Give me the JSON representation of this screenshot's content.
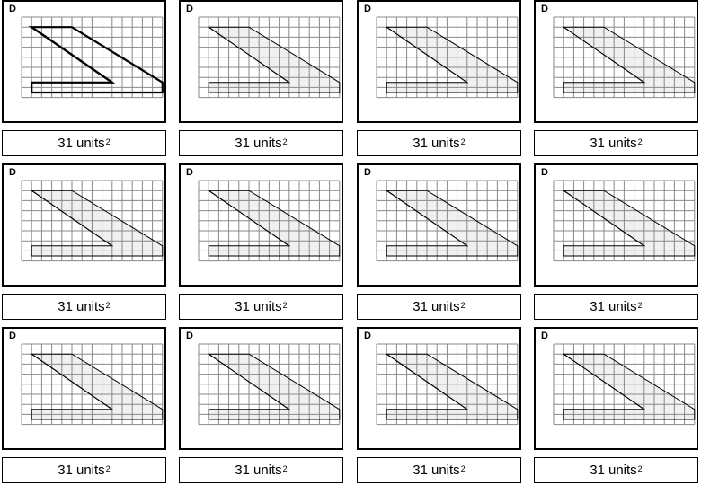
{
  "cards": [
    {
      "letter": "D",
      "value": "31",
      "unit": "units",
      "exponent": "2",
      "highlighted": true
    },
    {
      "letter": "D",
      "value": "31",
      "unit": "units",
      "exponent": "2",
      "highlighted": false
    },
    {
      "letter": "D",
      "value": "31",
      "unit": "units",
      "exponent": "2",
      "highlighted": false
    },
    {
      "letter": "D",
      "value": "31",
      "unit": "units",
      "exponent": "2",
      "highlighted": false
    },
    {
      "letter": "D",
      "value": "31",
      "unit": "units",
      "exponent": "2",
      "highlighted": false
    },
    {
      "letter": "D",
      "value": "31",
      "unit": "units",
      "exponent": "2",
      "highlighted": false
    },
    {
      "letter": "D",
      "value": "31",
      "unit": "units",
      "exponent": "2",
      "highlighted": false
    },
    {
      "letter": "D",
      "value": "31",
      "unit": "units",
      "exponent": "2",
      "highlighted": false
    },
    {
      "letter": "D",
      "value": "31",
      "unit": "units",
      "exponent": "2",
      "highlighted": false
    },
    {
      "letter": "D",
      "value": "31",
      "unit": "units",
      "exponent": "2",
      "highlighted": false
    },
    {
      "letter": "D",
      "value": "31",
      "unit": "units",
      "exponent": "2",
      "highlighted": false
    },
    {
      "letter": "D",
      "value": "31",
      "unit": "units",
      "exponent": "2",
      "highlighted": false
    }
  ],
  "grid": {
    "columns": 14,
    "rows": 8
  },
  "shape": {
    "vertices": [
      [
        1,
        1
      ],
      [
        5,
        1
      ],
      [
        14,
        6.5
      ],
      [
        14,
        7.5
      ],
      [
        1,
        7.5
      ],
      [
        1,
        6.5
      ],
      [
        9,
        6.5
      ]
    ],
    "diagonal": [
      [
        1,
        1
      ],
      [
        9,
        6.5
      ]
    ]
  },
  "colors": {
    "grid_line": "#888888",
    "fill": "#f0f0f0",
    "outline": "#000000",
    "border": "#000000"
  }
}
